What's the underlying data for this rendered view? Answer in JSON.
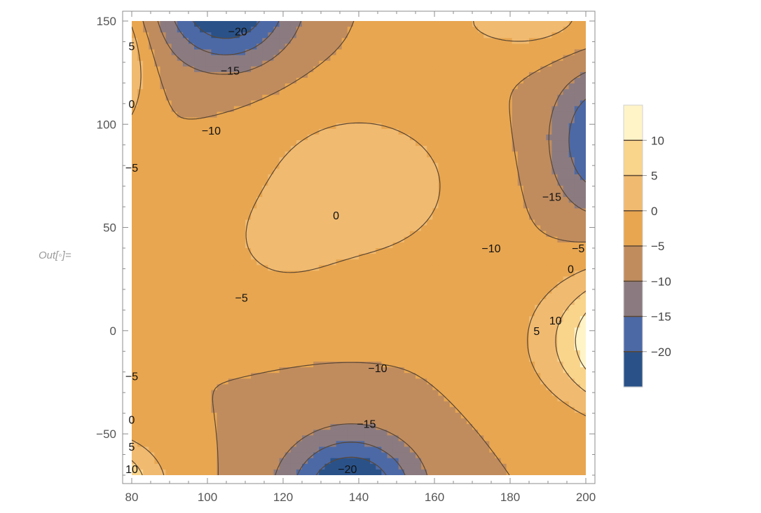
{
  "out_label": "Out[◦]=",
  "chart_data": {
    "type": "contour",
    "x_ticks": [
      "80",
      "100",
      "120",
      "140",
      "160",
      "180",
      "200"
    ],
    "y_ticks": [
      "−50",
      "0",
      "50",
      "100",
      "150"
    ],
    "xlim": [
      80,
      200
    ],
    "ylim": [
      -70,
      150
    ],
    "contour_levels": [
      -20,
      -15,
      -10,
      -5,
      0,
      5,
      10
    ],
    "legend": {
      "placement": "right",
      "labels": [
        "10",
        "5",
        "0",
        "−5",
        "−10",
        "−15",
        "−20"
      ],
      "colors": [
        "#FFF4C8",
        "#F9D48B",
        "#F0BA70",
        "#E8A650",
        "#C08C5E",
        "#8B7B80",
        "#4C69A6",
        "#2A5289"
      ]
    },
    "band_colors": {
      "below_-20": "#2A5289",
      "-20_to_-15": "#4C69A6",
      "-15_to_-10": "#8B7B80",
      "-10_to_-5": "#C08C5E",
      "-5_to_0": "#E8A650",
      "0_to_5": "#F0BA70",
      "5_to_10": "#F9D48B",
      "above_10": "#FFF4C8"
    },
    "contour_labels": [
      {
        "text": "−20",
        "x": 108,
        "y": 145
      },
      {
        "text": "−15",
        "x": 106,
        "y": 126
      },
      {
        "text": "−10",
        "x": 101,
        "y": 97
      },
      {
        "text": "5",
        "x": 80,
        "y": 138
      },
      {
        "text": "0",
        "x": 80,
        "y": 110
      },
      {
        "text": "−5",
        "x": 80,
        "y": 79
      },
      {
        "text": "0",
        "x": 134,
        "y": 56
      },
      {
        "text": "−5",
        "x": 109,
        "y": 16
      },
      {
        "text": "−15",
        "x": 191,
        "y": 65
      },
      {
        "text": "−10",
        "x": 175,
        "y": 40
      },
      {
        "text": "−5",
        "x": 198,
        "y": 40
      },
      {
        "text": "0",
        "x": 196,
        "y": 30
      },
      {
        "text": "10",
        "x": 192,
        "y": 5
      },
      {
        "text": "5",
        "x": 187,
        "y": 0
      },
      {
        "text": "−10",
        "x": 145,
        "y": -18
      },
      {
        "text": "−15",
        "x": 142,
        "y": -45
      },
      {
        "text": "−20",
        "x": 137,
        "y": -67
      },
      {
        "text": "−5",
        "x": 80,
        "y": -22
      },
      {
        "text": "0",
        "x": 80,
        "y": -43
      },
      {
        "text": "5",
        "x": 80,
        "y": -56
      },
      {
        "text": "10",
        "x": 80,
        "y": -67
      }
    ]
  }
}
